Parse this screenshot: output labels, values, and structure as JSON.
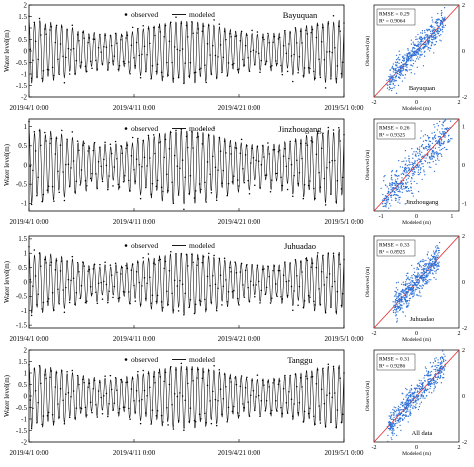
{
  "figure": {
    "legend": {
      "observed": "observed",
      "modeled": "modeled"
    },
    "colors": {
      "modeled_line": "#000000",
      "observed_dot": "#000000",
      "scatter": "#2a6fd6",
      "one_to_one": "#e4262b"
    },
    "icons": {
      "observed": "dot-marker",
      "modeled": "line-marker"
    }
  },
  "chart_data": [
    {
      "type": "line",
      "station": "Bayuquan",
      "ylabel": "Water level(m)",
      "yticks": [
        "2",
        "1.5",
        "1",
        "0.5",
        "0",
        "-0.5",
        "-1",
        "-1.5",
        "-2"
      ],
      "ylim": [
        -2,
        2
      ],
      "x_dates": [
        "2019/4/1 0:00",
        "2019/4/11 0:00",
        "2019/4/21 0:00",
        "2019/5/1 0:00"
      ],
      "x_range_days": [
        0,
        30
      ],
      "series": [
        {
          "name": "observed",
          "amplitude_m": 1.35,
          "tides_per_day": 1.93,
          "marker": "dot"
        },
        {
          "name": "modeled",
          "amplitude_m": 1.3,
          "tides_per_day": 1.93,
          "marker": "line"
        }
      ],
      "scatter": {
        "rmse_label": "RMSE = 0.29",
        "r2_label": "R² = 0.9064",
        "xlabel": "Modeled (m)",
        "ylabel": "Observed (m)",
        "ticks": [
          "-2",
          "0",
          "2"
        ],
        "range": [
          -2,
          2
        ],
        "rmse": 0.29,
        "r2": 0.9064
      }
    },
    {
      "type": "line",
      "station": "Jinzhougang",
      "ylabel": "Water level(m)",
      "yticks": [
        "1",
        "0.5",
        "0",
        "-0.5",
        "-1"
      ],
      "ylim": [
        -1.2,
        1.2
      ],
      "x_dates": [
        "2019/4/1 0:00",
        "2019/4/11 0:00",
        "2019/4/21 0:00",
        "2019/5/1 0:00"
      ],
      "x_range_days": [
        0,
        30
      ],
      "series": [
        {
          "name": "observed",
          "amplitude_m": 0.95,
          "tides_per_day": 1.93,
          "marker": "dot"
        },
        {
          "name": "modeled",
          "amplitude_m": 0.9,
          "tides_per_day": 1.93,
          "marker": "line"
        }
      ],
      "scatter": {
        "rmse_label": "RMSE = 0.26",
        "r2_label": "R² = 0.9325",
        "xlabel": "Modeled (m)",
        "ylabel": "Observed (m)",
        "ticks": [
          "-1",
          "0",
          "1"
        ],
        "range": [
          -1.2,
          1.2
        ],
        "rmse": 0.26,
        "r2": 0.9325
      }
    },
    {
      "type": "line",
      "station": "Juhuadao",
      "ylabel": "Water level(m)",
      "yticks": [
        "1.5",
        "1",
        "0.5",
        "0",
        "-0.5",
        "-1",
        "-1.5"
      ],
      "ylim": [
        -1.6,
        1.6
      ],
      "x_dates": [
        "2019/4/1 0:00",
        "2019/4/11 0:00",
        "2019/4/21 0:00",
        "2019/5/1 0:00"
      ],
      "x_range_days": [
        0,
        30
      ],
      "series": [
        {
          "name": "observed",
          "amplitude_m": 1.05,
          "tides_per_day": 1.93,
          "marker": "dot"
        },
        {
          "name": "modeled",
          "amplitude_m": 1.0,
          "tides_per_day": 1.93,
          "marker": "line"
        }
      ],
      "scatter": {
        "rmse_label": "RMSE = 0.33",
        "r2_label": "R² = 0.8925",
        "xlabel": "Modeled (m)",
        "ylabel": "Observed (m)",
        "ticks": [
          "-2",
          "0",
          "2"
        ],
        "range": [
          -2,
          2
        ],
        "rmse": 0.33,
        "r2": 0.8925
      }
    },
    {
      "type": "line",
      "station": "Tanggu",
      "ylabel": "Water level(m)",
      "yticks": [
        "2",
        "1.5",
        "1",
        "0.5",
        "0",
        "-0.5",
        "-1",
        "-1.5",
        "-2"
      ],
      "ylim": [
        -2,
        2
      ],
      "x_dates": [
        "2019/4/1 0:00",
        "2019/4/11 0:00",
        "2019/4/21 0:00",
        "2019/5/1 0:00"
      ],
      "x_range_days": [
        0,
        30
      ],
      "series": [
        {
          "name": "observed",
          "amplitude_m": 1.35,
          "tides_per_day": 1.93,
          "marker": "dot"
        },
        {
          "name": "modeled",
          "amplitude_m": 1.3,
          "tides_per_day": 1.93,
          "marker": "line"
        }
      ],
      "scatter": {
        "rmse_label": "RMSE = 0.31",
        "r2_label": "R² = 0.9286",
        "xlabel": "Modeled (m)",
        "ylabel": "Observed (m)",
        "ticks": [
          "-2",
          "0",
          "2"
        ],
        "range": [
          -2,
          2
        ],
        "rmse": 0.31,
        "r2": 0.9286,
        "tag": "All data"
      }
    }
  ]
}
